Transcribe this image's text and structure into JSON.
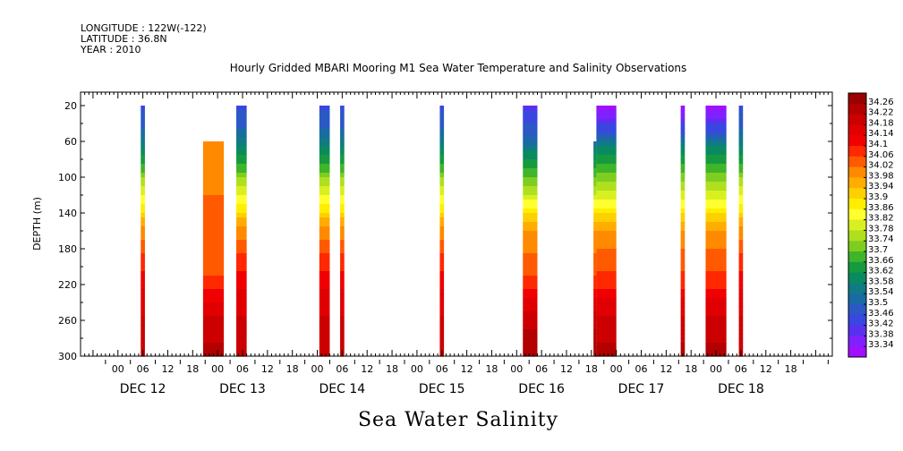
{
  "meta": {
    "longitude": "LONGITUDE : 122W(-122)",
    "latitude": "LATITUDE : 36.8N",
    "year": "YEAR : 2010"
  },
  "chart_data": {
    "type": "heatmap",
    "title": "Hourly Gridded MBARI Mooring M1 Sea Water Temperature and Salinity Observations",
    "xlabel": "Sea Water Salinity",
    "ylabel": "DEPTH (m)",
    "x_hour_ticks": [
      "00",
      "06",
      "12",
      "18",
      "00",
      "06",
      "12",
      "18",
      "00",
      "06",
      "12",
      "18",
      "00",
      "06",
      "12",
      "18",
      "00",
      "06",
      "12",
      "18",
      "00",
      "06",
      "12",
      "18",
      "00",
      "06",
      "12",
      "18"
    ],
    "x_day_labels": [
      "DEC 12",
      "DEC 13",
      "DEC 14",
      "DEC 15",
      "DEC 16",
      "DEC 17",
      "DEC 18"
    ],
    "y_ticks": [
      20,
      60,
      100,
      140,
      180,
      220,
      260,
      300
    ],
    "ylim": [
      300,
      5
    ],
    "xlim_hours": [
      -9,
      172
    ],
    "colorbar_labels": [
      "34.26",
      "34.22",
      "34.18",
      "34.14",
      "34.1",
      "34.06",
      "34.02",
      "33.98",
      "33.94",
      "33.9",
      "33.86",
      "33.82",
      "33.78",
      "33.74",
      "33.7",
      "33.66",
      "33.62",
      "33.58",
      "33.54",
      "33.5",
      "33.46",
      "33.42",
      "33.38",
      "33.34"
    ],
    "colors": [
      "#9a0000",
      "#b30000",
      "#cc0000",
      "#e00000",
      "#f00000",
      "#ff2800",
      "#ff5a00",
      "#ff8a00",
      "#ffad00",
      "#ffd000",
      "#ffee00",
      "#ffff30",
      "#d8f020",
      "#aee020",
      "#7fcd20",
      "#3fb52a",
      "#159a40",
      "#0a8a60",
      "#107a85",
      "#1a6aa5",
      "#2a58c5",
      "#3a46e0",
      "#5a30f0",
      "#8020ff",
      "#a010ff"
    ],
    "clim": [
      33.34,
      34.3
    ],
    "profiles": {
      "blue_top": [
        [
          20,
          33.48
        ],
        [
          40,
          33.52
        ],
        [
          65,
          33.6
        ],
        [
          85,
          33.68
        ],
        [
          100,
          33.76
        ],
        [
          120,
          33.84
        ],
        [
          138,
          33.9
        ],
        [
          155,
          34.0
        ],
        [
          190,
          34.08
        ],
        [
          220,
          34.14
        ],
        [
          240,
          34.18
        ],
        [
          300,
          34.2
        ]
      ],
      "red": [
        [
          20,
          34.12
        ],
        [
          300,
          34.22
        ]
      ],
      "orange": [
        [
          20,
          34.02
        ],
        [
          200,
          34.04
        ],
        [
          230,
          34.12
        ],
        [
          260,
          34.2
        ],
        [
          300,
          34.24
        ]
      ],
      "bands": [
        [
          20,
          33.44
        ],
        [
          45,
          33.5
        ],
        [
          65,
          33.58
        ],
        [
          90,
          33.68
        ],
        [
          115,
          33.78
        ],
        [
          135,
          33.88
        ],
        [
          150,
          33.96
        ],
        [
          170,
          34.02
        ],
        [
          200,
          34.04
        ],
        [
          215,
          34.08
        ],
        [
          245,
          34.18
        ],
        [
          270,
          34.22
        ],
        [
          300,
          34.26
        ]
      ],
      "purple_top": [
        [
          20,
          33.36
        ],
        [
          35,
          33.42
        ],
        [
          50,
          33.5
        ],
        [
          65,
          33.6
        ],
        [
          90,
          33.7
        ],
        [
          115,
          33.8
        ],
        [
          135,
          33.88
        ],
        [
          150,
          33.96
        ],
        [
          170,
          34.02
        ],
        [
          200,
          34.06
        ],
        [
          220,
          34.1
        ],
        [
          250,
          34.18
        ],
        [
          280,
          34.22
        ],
        [
          300,
          34.24
        ]
      ]
    },
    "columns": [
      {
        "start_hour": 5.5,
        "end_hour": 6.5,
        "top_depth": 20,
        "profile": "blue_top"
      },
      {
        "start_hour": 20.5,
        "end_hour": 23,
        "top_depth": 60,
        "profile": "orange"
      },
      {
        "start_hour": 23,
        "end_hour": 25.5,
        "top_depth": 60,
        "profile": "orange"
      },
      {
        "start_hour": 28.5,
        "end_hour": 31,
        "top_depth": 20,
        "profile": "blue_top"
      },
      {
        "start_hour": 48.5,
        "end_hour": 51,
        "top_depth": 20,
        "profile": "blue_top"
      },
      {
        "start_hour": 53.5,
        "end_hour": 54.5,
        "top_depth": 20,
        "profile": "blue_top"
      },
      {
        "start_hour": 77.5,
        "end_hour": 78.5,
        "top_depth": 20,
        "profile": "blue_top"
      },
      {
        "start_hour": 97.5,
        "end_hour": 101,
        "top_depth": 20,
        "profile": "bands"
      },
      {
        "start_hour": 114.5,
        "end_hour": 115.2,
        "top_depth": 60,
        "profile": "bands"
      },
      {
        "start_hour": 115.2,
        "end_hour": 120,
        "top_depth": 20,
        "profile": "purple_top"
      },
      {
        "start_hour": 135.5,
        "end_hour": 136.5,
        "top_depth": 20,
        "profile": "purple_top"
      },
      {
        "start_hour": 141.5,
        "end_hour": 146.5,
        "top_depth": 20,
        "profile": "purple_top"
      },
      {
        "start_hour": 149.5,
        "end_hour": 150.5,
        "top_depth": 20,
        "profile": "blue_top"
      }
    ]
  }
}
